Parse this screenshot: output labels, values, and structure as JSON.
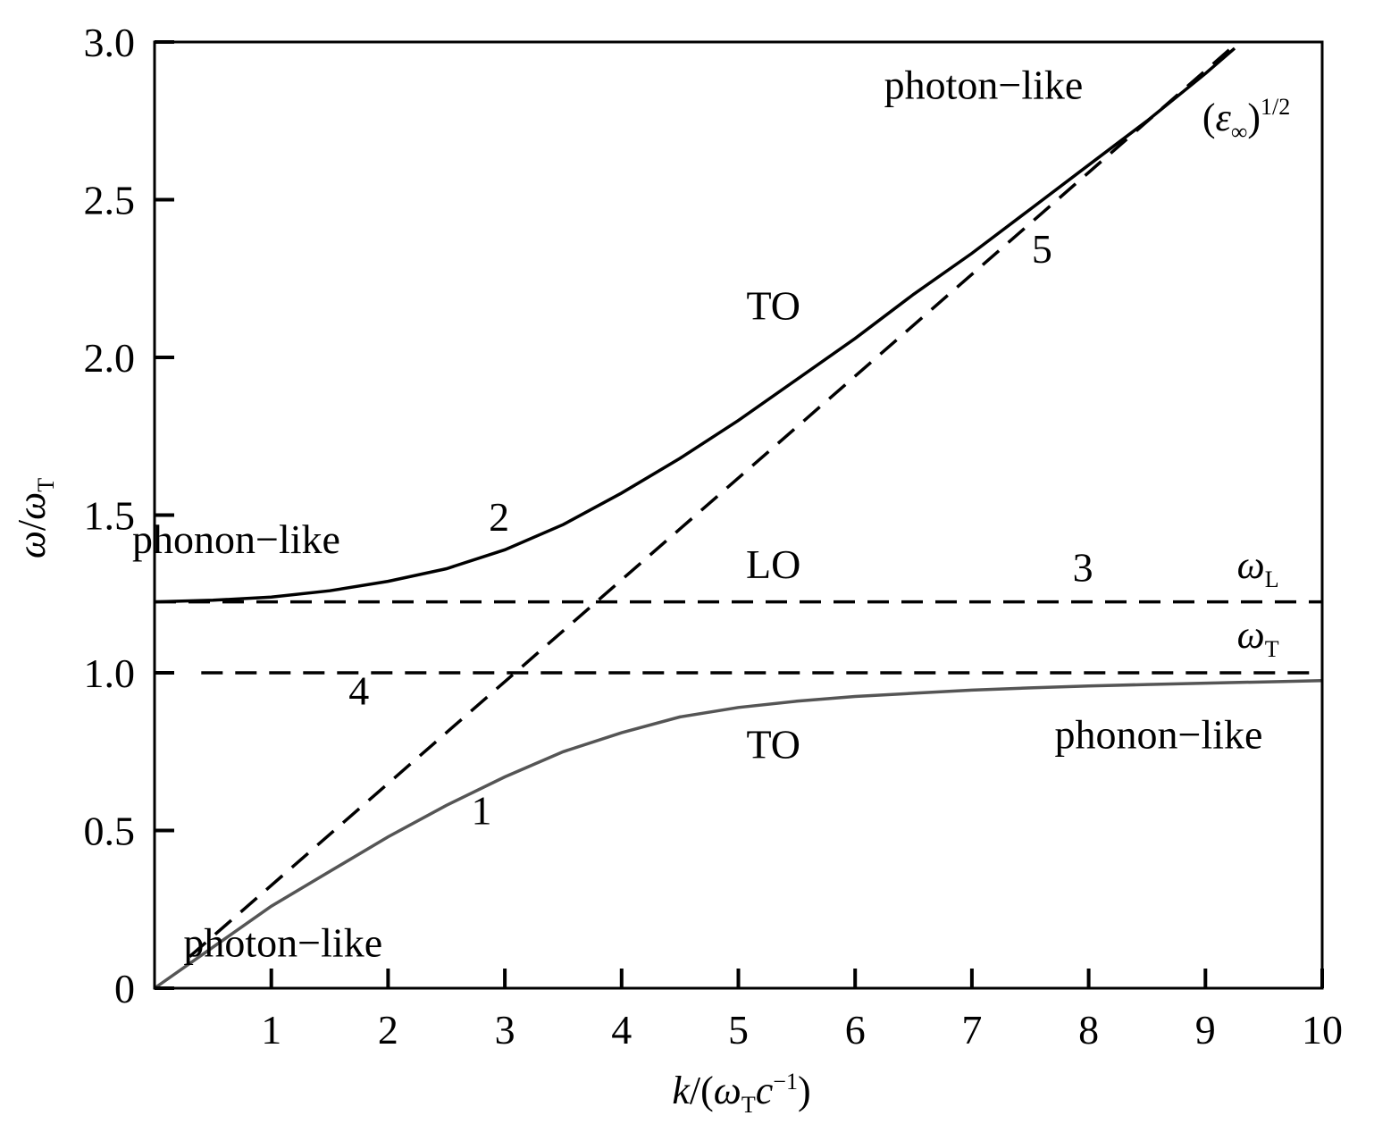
{
  "chart_data": {
    "type": "line",
    "xlabel": {
      "k": "k",
      "open": "/(",
      "omega": "ω",
      "sub": "T",
      "c": "c",
      "sup": "−1",
      "close": ")"
    },
    "ylabel": {
      "omega1": "ω",
      "slash": "/",
      "omega2": "ω",
      "sub": "T"
    },
    "xlim": [
      0,
      10
    ],
    "ylim": [
      0,
      3
    ],
    "x_ticks": [
      1,
      2,
      3,
      4,
      5,
      6,
      7,
      8,
      9,
      10
    ],
    "x_tick_labels": [
      "1",
      "2",
      "3",
      "4",
      "5",
      "6",
      "7",
      "8",
      "9",
      "10"
    ],
    "y_ticks": [
      0,
      0.5,
      1.0,
      1.5,
      2.0,
      2.5,
      3.0
    ],
    "y_tick_labels": [
      "0",
      "0.5",
      "1.0",
      "1.5",
      "2.0",
      "2.5",
      "3.0"
    ],
    "x_origin_label": "",
    "series": [
      {
        "style": "solid",
        "color": "#555555",
        "x": [
          0,
          0.5,
          1,
          1.5,
          2,
          2.5,
          3,
          3.5,
          4,
          4.5,
          5,
          5.5,
          6,
          6.5,
          7,
          7.5,
          8,
          8.5,
          9,
          9.5,
          10
        ],
        "y": [
          0,
          0.13,
          0.26,
          0.37,
          0.48,
          0.58,
          0.67,
          0.75,
          0.81,
          0.86,
          0.89,
          0.91,
          0.925,
          0.935,
          0.945,
          0.952,
          0.958,
          0.963,
          0.967,
          0.971,
          0.975
        ]
      },
      {
        "style": "solid",
        "color": "#000000",
        "x": [
          0,
          0.5,
          1,
          1.5,
          2,
          2.5,
          3,
          3.5,
          4,
          4.5,
          5,
          5.5,
          6,
          6.5,
          7,
          7.5,
          8,
          8.5,
          9,
          9.25
        ],
        "y": [
          1.225,
          1.23,
          1.24,
          1.26,
          1.29,
          1.33,
          1.39,
          1.47,
          1.57,
          1.68,
          1.8,
          1.93,
          2.06,
          2.2,
          2.33,
          2.47,
          2.61,
          2.75,
          2.9,
          2.98
        ]
      },
      {
        "style": "dashed",
        "color": "#000000",
        "x": [
          0,
          10
        ],
        "y": [
          1.225,
          1.225
        ]
      },
      {
        "style": "dashed",
        "color": "#000000",
        "x": [
          0.4,
          10
        ],
        "y": [
          1.0,
          1.0
        ]
      },
      {
        "style": "dashed",
        "color": "#000000",
        "x": [
          0.3,
          9.25
        ],
        "y": [
          0.1,
          2.99
        ]
      }
    ],
    "annotations": [
      {
        "text": "photon−like",
        "x": 7.1,
        "y": 2.82
      },
      {
        "text": "TO",
        "x": 5.3,
        "y": 2.12
      },
      {
        "text": "phonon−like",
        "x": 0.7,
        "y": 1.38
      },
      {
        "text": "2",
        "x": 2.95,
        "y": 1.45
      },
      {
        "text": "LO",
        "x": 5.3,
        "y": 1.3
      },
      {
        "text": "3",
        "x": 7.95,
        "y": 1.29
      },
      {
        "text": "4",
        "x": 1.75,
        "y": 0.9
      },
      {
        "text": "TO",
        "x": 5.3,
        "y": 0.73
      },
      {
        "text": "phonon−like",
        "x": 8.6,
        "y": 0.76
      },
      {
        "text": "1",
        "x": 2.8,
        "y": 0.52
      },
      {
        "text": "photon−like",
        "x": 1.1,
        "y": 0.1
      },
      {
        "text": "5",
        "x": 7.6,
        "y": 2.3
      }
    ],
    "labels_omega": {
      "omegaL": {
        "base": "ω",
        "sub": "L",
        "x": 9.45,
        "y": 1.3
      },
      "omegaT": {
        "base": "ω",
        "sub": "T",
        "x": 9.45,
        "y": 1.08
      },
      "eps": {
        "open": "(",
        "base": "ε",
        "sub": "∞",
        "close": ")",
        "sup": "1/2",
        "x": 9.35,
        "y": 2.72
      }
    },
    "grid": false,
    "legend": "none"
  }
}
